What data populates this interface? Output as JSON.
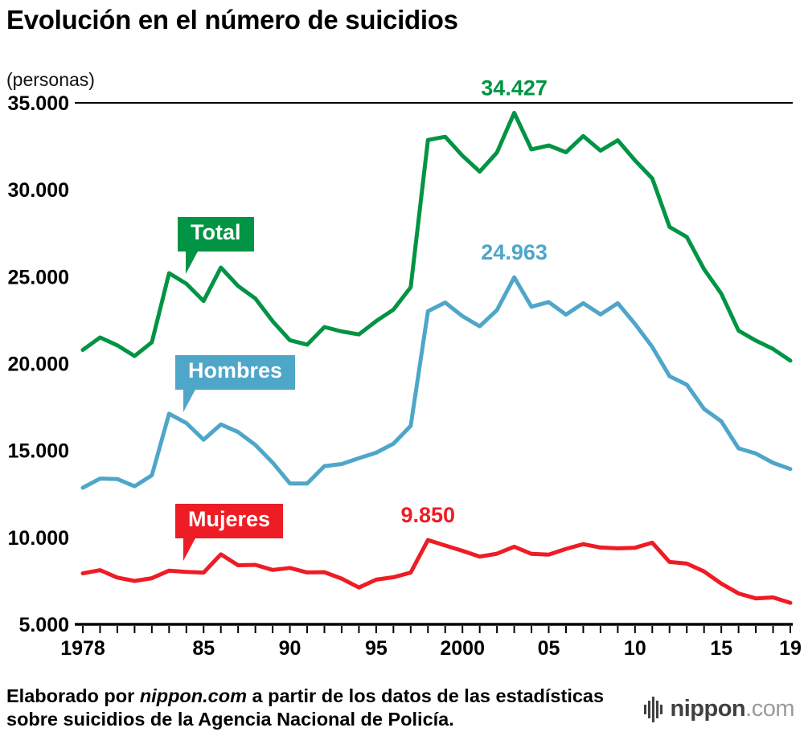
{
  "title": "Evolución en el número de suicidios",
  "unit_label": "(personas)",
  "source": {
    "prefix": "Elaborado por ",
    "brand": "nippon.com",
    "suffix": " a partir de los datos de las estadísticas sobre suicidios de la Agencia Nacional de Policía."
  },
  "logo": {
    "name": "nippon",
    "tld": ".com"
  },
  "chart_data": {
    "type": "line",
    "title": "Evolución en el número de suicidios",
    "ylabel": "(personas)",
    "xlabel": "",
    "ylim": [
      5000,
      35000
    ],
    "ytick_step": 5000,
    "grid": false,
    "legend_position": "inline-badges",
    "x": [
      1978,
      1979,
      1980,
      1981,
      1982,
      1983,
      1984,
      1985,
      1986,
      1987,
      1988,
      1989,
      1990,
      1991,
      1992,
      1993,
      1994,
      1995,
      1996,
      1997,
      1998,
      1999,
      2000,
      2001,
      2002,
      2003,
      2004,
      2005,
      2006,
      2007,
      2008,
      2009,
      2010,
      2011,
      2012,
      2013,
      2014,
      2015,
      2016,
      2017,
      2018,
      2019
    ],
    "series": [
      {
        "name": "Total",
        "color": "#009444",
        "values": [
          20788,
          21503,
          21048,
          20434,
          21228,
          25202,
          24596,
          23599,
          25524,
          24460,
          23742,
          22436,
          21346,
          21084,
          22104,
          21851,
          21679,
          22445,
          23104,
          24391,
          32863,
          33048,
          31957,
          31042,
          32143,
          34427,
          32325,
          32552,
          32155,
          33093,
          32249,
          32845,
          31690,
          30651,
          27858,
          27283,
          25427,
          24025,
          21897,
          21321,
          20840,
          20169
        ]
      },
      {
        "name": "Hombres",
        "color": "#4EA6C9",
        "values": [
          12859,
          13386,
          13356,
          12940,
          13574,
          17116,
          16578,
          15624,
          16499,
          16063,
          15322,
          14307,
          13102,
          13097,
          14104,
          14223,
          14560,
          14874,
          15393,
          16416,
          23013,
          23512,
          22727,
          22144,
          23080,
          24963,
          23272,
          23540,
          22813,
          23478,
          22831,
          23472,
          22283,
          20955,
          19273,
          18787,
          17386,
          16681,
          15121,
          14826,
          14290,
          13937
        ]
      },
      {
        "name": "Mujeres",
        "color": "#EE1C25",
        "values": [
          7929,
          8117,
          7692,
          7494,
          7654,
          8086,
          8018,
          7975,
          9025,
          8397,
          8420,
          8129,
          8244,
          7987,
          8000,
          7628,
          7119,
          7571,
          7711,
          7975,
          9850,
          9536,
          9230,
          8898,
          9063,
          9464,
          9053,
          9012,
          9342,
          9615,
          9418,
          9373,
          9407,
          9696,
          8585,
          8496,
          8041,
          7344,
          6776,
          6495,
          6550,
          6232
        ]
      }
    ],
    "ytick_labels": [
      {
        "value": 35000,
        "label": "35.000"
      },
      {
        "value": 30000,
        "label": "30.000"
      },
      {
        "value": 25000,
        "label": "25.000"
      },
      {
        "value": 20000,
        "label": "20.000"
      },
      {
        "value": 15000,
        "label": "15.000"
      },
      {
        "value": 10000,
        "label": "10.000"
      },
      {
        "value": 5000,
        "label": "5.000"
      }
    ],
    "xtick_labels": [
      {
        "year": 1978,
        "label": "1978"
      },
      {
        "year": 1985,
        "label": "85"
      },
      {
        "year": 1990,
        "label": "90"
      },
      {
        "year": 1995,
        "label": "95"
      },
      {
        "year": 2000,
        "label": "2000"
      },
      {
        "year": 2005,
        "label": "05"
      },
      {
        "year": 2010,
        "label": "10"
      },
      {
        "year": 2015,
        "label": "15"
      },
      {
        "year": 2019,
        "label": "19"
      }
    ],
    "annotations": [
      {
        "series": "Total",
        "year": 2003,
        "value": 34427,
        "label": "34.427"
      },
      {
        "series": "Hombres",
        "year": 2003,
        "value": 24963,
        "label": "24.963"
      },
      {
        "series": "Mujeres",
        "year": 1998,
        "value": 9850,
        "label": "9.850"
      }
    ]
  }
}
